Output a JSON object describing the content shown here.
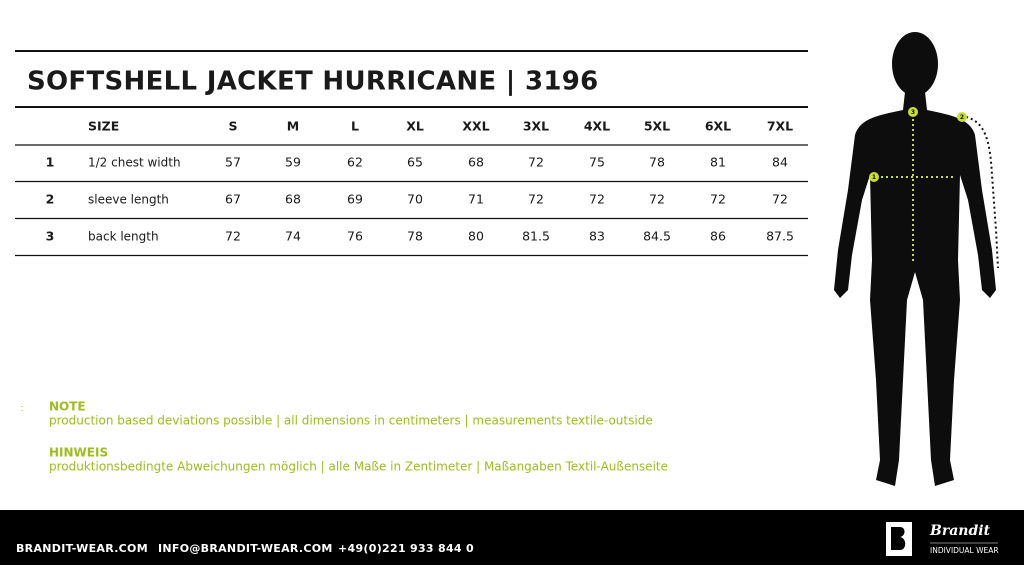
{
  "header": {
    "title": "SOFTSHELL JACKET HURRICANE | 3196"
  },
  "table": {
    "columns": [
      "SIZE",
      "S",
      "M",
      "L",
      "XL",
      "XXL",
      "3XL",
      "4XL",
      "5XL",
      "6XL",
      "7XL"
    ],
    "rows": [
      {
        "index": "1",
        "label": "1/2 chest width",
        "values": [
          57,
          59,
          62,
          65,
          68,
          72,
          75,
          78,
          81,
          84
        ]
      },
      {
        "index": "2",
        "label": "sleeve length",
        "values": [
          67,
          68,
          69,
          70,
          71,
          72,
          72,
          72,
          72,
          72
        ]
      },
      {
        "index": "3",
        "label": "back length",
        "values": [
          72,
          74,
          76,
          78,
          80,
          81.5,
          83,
          84.5,
          86,
          87.5
        ]
      }
    ]
  },
  "notes": [
    {
      "heading": "NOTE",
      "text": "production based deviations possible | all dimensions in centimeters | measurements textile-outside"
    },
    {
      "heading": "HINWEIS",
      "text": "produktionsbedingte Abweichungen möglich | alle Maße in Zentimeter | Maßangaben Textil-Außenseite"
    }
  ],
  "figure": {
    "markers": [
      "1",
      "2",
      "3"
    ]
  },
  "footer": {
    "website": "BRANDIT-WEAR.COM",
    "email": "INFO@BRANDIT-WEAR.COM",
    "phone": "+49(0)221 933 844 0",
    "brand": "Brandit",
    "tagline": "INDIVIDUAL WEAR"
  }
}
